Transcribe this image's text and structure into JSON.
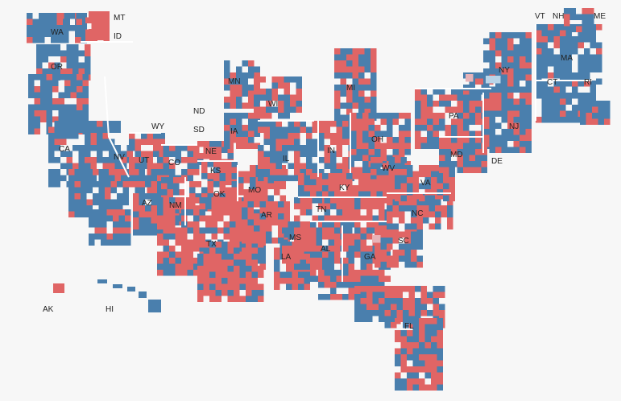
{
  "colors": {
    "dem": "#4a7fad",
    "rep": "#e06565",
    "dem_light": "#b8d4e8",
    "rep_light": "#e8b3b8",
    "border": "#ffffff"
  },
  "map": {
    "type": "cartogram",
    "description_labels": [
      "WA",
      "OR",
      "CA",
      "NV",
      "ID",
      "MT",
      "WY",
      "UT",
      "AZ",
      "CO",
      "NM",
      "ND",
      "SD",
      "NE",
      "KS",
      "OK",
      "TX",
      "MN",
      "IA",
      "MO",
      "AR",
      "LA",
      "WI",
      "IL",
      "MI",
      "IN",
      "OH",
      "KY",
      "TN",
      "MS",
      "AL",
      "GA",
      "FL",
      "SC",
      "NC",
      "VA",
      "WV",
      "MD",
      "DE",
      "PA",
      "NJ",
      "NY",
      "CT",
      "RI",
      "MA",
      "VT",
      "NH",
      "ME",
      "AK",
      "HI"
    ]
  },
  "labels": {
    "WA": "WA",
    "OR": "OR",
    "CA": "CA",
    "NV": "NV",
    "UT": "UT",
    "AZ": "AZ",
    "CO": "CO",
    "NM": "NM",
    "NE": "NE",
    "KS": "KS",
    "OK": "OK",
    "TX": "TX",
    "MN": "MN",
    "IA": "IA",
    "MO": "MO",
    "AR": "AR",
    "LA": "LA",
    "WI": "WI",
    "IL": "IL",
    "MI": "MI",
    "IN": "IN",
    "OH": "OH",
    "KY": "KY",
    "TN": "TN",
    "MS": "MS",
    "AL": "AL",
    "GA": "GA",
    "FL": "FL",
    "SC": "SC",
    "NC": "NC",
    "VA": "VA",
    "WV": "WV",
    "MD": "MD",
    "DE": "DE",
    "PA": "PA",
    "NJ": "NJ",
    "NY": "NY",
    "CT": "CT",
    "RI": "RI",
    "MA": "MA",
    "MT": "MT",
    "ID": "ID",
    "WY": "WY",
    "ND": "ND",
    "SD": "SD",
    "VT": "VT",
    "NH": "NH",
    "ME": "ME",
    "AK": "AK",
    "HI": "HI"
  }
}
